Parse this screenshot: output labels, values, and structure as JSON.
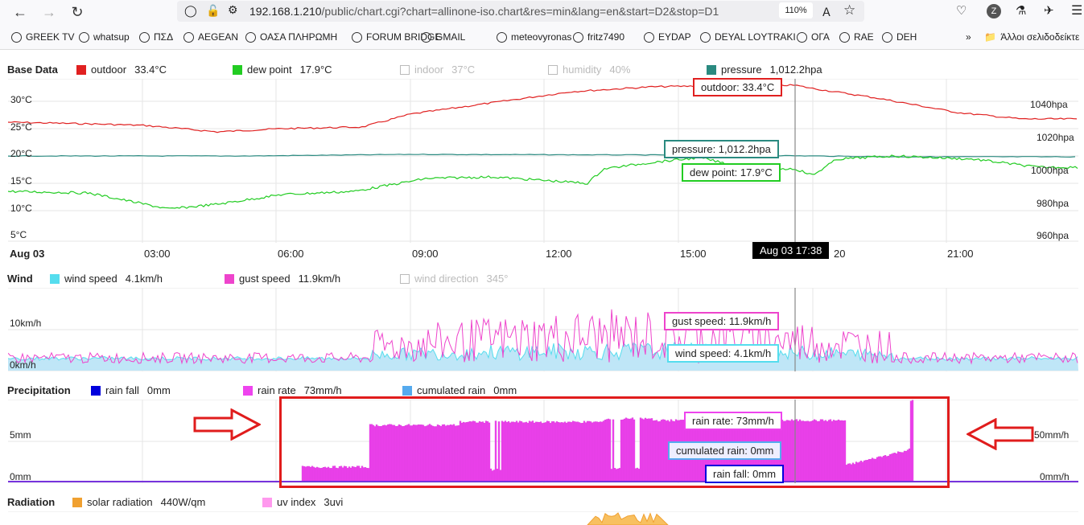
{
  "browser": {
    "url_host": "192.168.1.210",
    "url_path": "/public/chart.cgi?chart=allinone-iso.chart&res=min&lang=en&start=D2&stop=D1",
    "zoom": "110%",
    "profile_letter": "Z",
    "bookmarks": [
      "GREEK TV",
      "whatsup",
      "ΠΣΔ",
      "AEGEAN",
      "ΟΑΣΑ ΠΛΗΡΩΜΗ",
      "FORUM BRIDGE",
      "GMAIL",
      "meteovyronas",
      "fritz7490",
      "EYDAP",
      "DEYAL LOYTRAKI",
      "ΟΓΑ",
      "RAE",
      "DEH"
    ],
    "bookmarks_more": "Άλλοι σελιδοδείκτε"
  },
  "base": {
    "title": "Base Data",
    "legend": [
      {
        "label": "outdoor",
        "value": "33.4°C",
        "color": "#e02020",
        "active": true
      },
      {
        "label": "dew point",
        "value": "17.9°C",
        "color": "#22cc22",
        "active": true
      },
      {
        "label": "indoor",
        "value": "37°C",
        "color": "#bbbbbb",
        "active": false
      },
      {
        "label": "humidity",
        "value": "40%",
        "color": "#bbbbbb",
        "active": false
      },
      {
        "label": "pressure",
        "value": "1,012.2hpa",
        "color": "#2a8a80",
        "active": true
      }
    ],
    "y_left": [
      "30°C",
      "25°C",
      "20°C",
      "15°C",
      "10°C",
      "5°C"
    ],
    "y_right": [
      "1040hpa",
      "1020hpa",
      "1000hpa",
      "980hpa",
      "960hpa"
    ],
    "x_labels": [
      "Aug 03",
      "03:00",
      "06:00",
      "09:00",
      "12:00",
      "15:00",
      "20",
      "21:00"
    ],
    "tips": {
      "outdoor": "outdoor: 33.4°C",
      "pressure": "pressure: 1,012.2hpa",
      "dew": "dew point: 17.9°C"
    },
    "time_tip": "Aug 03 17:38"
  },
  "wind": {
    "title": "Wind",
    "legend": [
      {
        "label": "wind speed",
        "value": "4.1km/h",
        "color": "#55ddee",
        "active": true
      },
      {
        "label": "gust speed",
        "value": "11.9km/h",
        "color": "#ee44cc",
        "active": true
      },
      {
        "label": "wind direction",
        "value": "345°",
        "color": "#bbbbbb",
        "active": false
      }
    ],
    "y_left": [
      "10km/h",
      "0km/h"
    ],
    "tips": {
      "gust": "gust speed: 11.9km/h",
      "wind": "wind speed: 4.1km/h"
    }
  },
  "precip": {
    "title": "Precipitation",
    "legend": [
      {
        "label": "rain fall",
        "value": "0mm",
        "color": "#0000dd",
        "active": true
      },
      {
        "label": "rain rate",
        "value": "73mm/h",
        "color": "#ee44ee",
        "active": true
      },
      {
        "label": "cumulated rain",
        "value": "0mm",
        "color": "#55aaee",
        "active": true
      }
    ],
    "y_left": [
      "5mm",
      "0mm"
    ],
    "y_right": [
      "50mm/h",
      "0mm/h"
    ],
    "tips": {
      "rate": "rain rate: 73mm/h",
      "cum": "cumulated rain: 0mm",
      "fall": "rain fall: 0mm"
    }
  },
  "radiation": {
    "title": "Radiation",
    "legend": [
      {
        "label": "solar radiation",
        "value": "440W/qm",
        "color": "#f0a030",
        "active": true
      },
      {
        "label": "uv index",
        "value": "3uvi",
        "color": "#ff99ee",
        "active": true
      }
    ]
  }
}
